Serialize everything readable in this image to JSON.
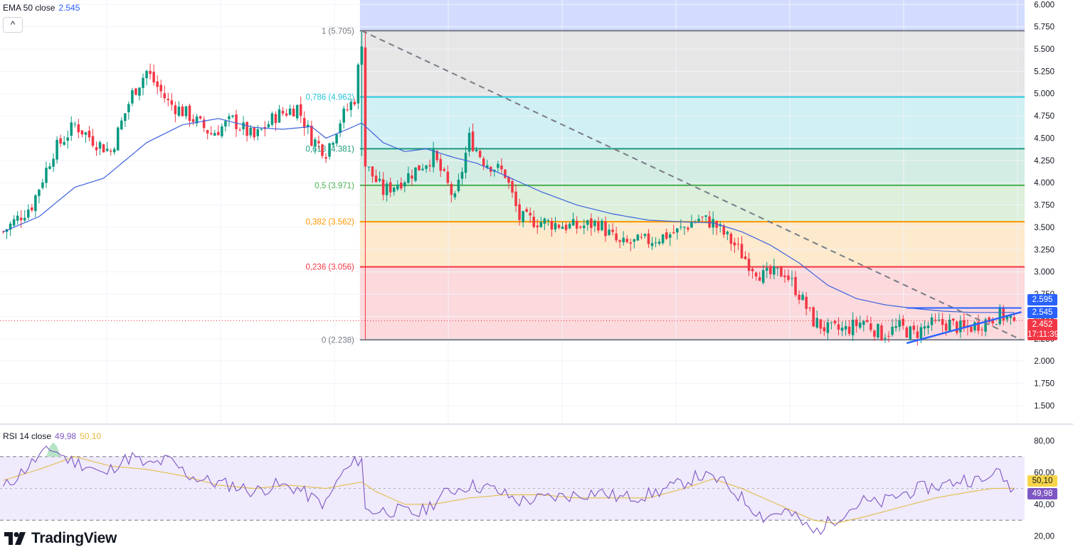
{
  "legend_main": {
    "label": "EMA 50 close",
    "value": "2.545",
    "value_color": "#2962ff"
  },
  "legend_rsi": {
    "label": "RSI 14 close",
    "rsi_value": "49,98",
    "rsi_color": "#7e57c2",
    "ma_value": "50,10",
    "ma_color": "#e2b93b"
  },
  "collapse_icon": "chevron-up-icon",
  "collapse_glyph": "^",
  "logo": {
    "icon": "tradingview-logo-icon",
    "text": "TradingView"
  },
  "price_tags": {
    "resistance": {
      "text": "2.595",
      "color": "#2962ff"
    },
    "ema": {
      "text": "2.545",
      "color": "#2962ff"
    },
    "last": {
      "text": "2.452",
      "countdown": "17:11:39",
      "color": "#f23645"
    },
    "rsi_ma": {
      "text": "50,10",
      "color": "#f7d54a"
    },
    "rsi": {
      "text": "49,98",
      "color": "#7e57c2"
    }
  },
  "chart_data": [
    {
      "type": "candlestick",
      "price_axis": {
        "min": 1.3,
        "max": 6.05,
        "ticks": [
          6.0,
          5.75,
          5.5,
          5.25,
          5.0,
          4.75,
          4.5,
          4.25,
          4.0,
          3.75,
          3.5,
          3.25,
          3.0,
          2.75,
          2.5,
          2.25,
          2.0,
          1.75,
          1.5
        ]
      },
      "tick_labels": [
        "6.000",
        "5.750",
        "5.500",
        "5.250",
        "5.000",
        "4.750",
        "4.500",
        "4.250",
        "4.000",
        "3.750",
        "3.500",
        "3.250",
        "3.000",
        "2.750",
        "2.500",
        "2.250",
        "2.000",
        "1.750",
        "1.500"
      ],
      "candle_count": 285,
      "fib_start_index": 100,
      "fibonacci": [
        {
          "label": "1 (5.705)",
          "price": 5.705,
          "color": "#787b86"
        },
        {
          "label": "0,786 (4.962)",
          "price": 4.962,
          "color": "#26c6da"
        },
        {
          "label": "0,618 (4.381)",
          "price": 4.381,
          "color": "#1b9a7c"
        },
        {
          "label": "0,5 (3.971)",
          "price": 3.971,
          "color": "#4caf50"
        },
        {
          "label": "0,382 (3.562)",
          "price": 3.562,
          "color": "#ff9800"
        },
        {
          "label": "0,236 (3.056)",
          "price": 3.056,
          "color": "#f23645"
        },
        {
          "label": "0 (2.238)",
          "price": 2.238,
          "color": "#787b86"
        }
      ],
      "fib_top_zone_price": 6.05,
      "fib_zone_colors": [
        "#d2dcff",
        "#e6e6e6",
        "#d1f0f4",
        "#d4ede4",
        "#dcf0dc",
        "#fde9cc",
        "#fbd9dc"
      ],
      "anchors": [
        [
          0,
          3.45
        ],
        [
          8,
          3.75
        ],
        [
          14,
          4.35
        ],
        [
          20,
          4.65
        ],
        [
          26,
          4.45
        ],
        [
          30,
          4.35
        ],
        [
          36,
          5.0
        ],
        [
          40,
          5.25
        ],
        [
          46,
          4.9
        ],
        [
          52,
          4.75
        ],
        [
          58,
          4.55
        ],
        [
          64,
          4.7
        ],
        [
          70,
          4.5
        ],
        [
          76,
          4.75
        ],
        [
          82,
          4.85
        ],
        [
          86,
          4.5
        ],
        [
          90,
          4.35
        ],
        [
          94,
          4.7
        ],
        [
          98,
          4.95
        ],
        [
          100,
          5.6
        ],
        [
          101,
          4.2
        ],
        [
          106,
          3.9
        ],
        [
          112,
          4.05
        ],
        [
          120,
          4.3
        ],
        [
          126,
          3.8
        ],
        [
          130,
          4.5
        ],
        [
          134,
          4.25
        ],
        [
          140,
          4.1
        ],
        [
          144,
          3.6
        ],
        [
          152,
          3.55
        ],
        [
          160,
          3.5
        ],
        [
          166,
          3.55
        ],
        [
          172,
          3.3
        ],
        [
          180,
          3.35
        ],
        [
          188,
          3.45
        ],
        [
          194,
          3.6
        ],
        [
          198,
          3.55
        ],
        [
          204,
          3.3
        ],
        [
          208,
          3.1
        ],
        [
          212,
          2.95
        ],
        [
          218,
          3.0
        ],
        [
          222,
          2.75
        ],
        [
          226,
          2.45
        ],
        [
          230,
          2.35
        ],
        [
          235,
          2.35
        ],
        [
          240,
          2.45
        ],
        [
          245,
          2.3
        ],
        [
          250,
          2.38
        ],
        [
          254,
          2.3
        ],
        [
          258,
          2.4
        ],
        [
          264,
          2.42
        ],
        [
          268,
          2.35
        ],
        [
          274,
          2.45
        ],
        [
          278,
          2.52
        ],
        [
          282,
          2.452
        ]
      ],
      "ema": {
        "name": "EMA 50",
        "color": "#3d63dd",
        "points": [
          [
            0,
            3.45
          ],
          [
            10,
            3.62
          ],
          [
            20,
            3.95
          ],
          [
            28,
            4.05
          ],
          [
            40,
            4.45
          ],
          [
            50,
            4.65
          ],
          [
            60,
            4.72
          ],
          [
            70,
            4.62
          ],
          [
            78,
            4.6
          ],
          [
            86,
            4.63
          ],
          [
            90,
            4.5
          ],
          [
            96,
            4.6
          ],
          [
            100,
            4.67
          ],
          [
            106,
            4.45
          ],
          [
            112,
            4.35
          ],
          [
            118,
            4.38
          ],
          [
            126,
            4.28
          ],
          [
            132,
            4.22
          ],
          [
            140,
            4.08
          ],
          [
            150,
            3.9
          ],
          [
            160,
            3.75
          ],
          [
            170,
            3.65
          ],
          [
            180,
            3.58
          ],
          [
            190,
            3.56
          ],
          [
            198,
            3.55
          ],
          [
            206,
            3.45
          ],
          [
            214,
            3.3
          ],
          [
            222,
            3.1
          ],
          [
            230,
            2.85
          ],
          [
            238,
            2.7
          ],
          [
            246,
            2.63
          ],
          [
            254,
            2.59
          ],
          [
            262,
            2.56
          ],
          [
            270,
            2.545
          ],
          [
            282,
            2.545
          ]
        ]
      },
      "trendline": {
        "from": [
          100,
          5.705
        ],
        "to": [
          284,
          2.238
        ],
        "color": "#787b86",
        "style": "dashed"
      },
      "resistance": {
        "from": [
          252,
          2.595
        ],
        "to": [
          284,
          2.595
        ],
        "color": "#2962ff"
      },
      "support": {
        "from": [
          252,
          2.2
        ],
        "to": [
          284,
          2.55
        ],
        "color": "#2962ff"
      },
      "last_price": {
        "value": 2.452,
        "color": "#f23645"
      }
    },
    {
      "type": "line",
      "name": "RSI 14",
      "axis": {
        "min": 10,
        "max": 90,
        "ticks": [
          80,
          60,
          40,
          20
        ]
      },
      "tick_labels": [
        "80,00",
        "60,00",
        "40,00",
        "20,00"
      ],
      "band": {
        "upper": 70,
        "lower": 30,
        "fill": "#efeafc"
      },
      "rsi_color": "#7e57c2",
      "ma_color": "#e2b93b",
      "rsi_anchors": [
        [
          0,
          50
        ],
        [
          6,
          62
        ],
        [
          10,
          70
        ],
        [
          14,
          75
        ],
        [
          18,
          68
        ],
        [
          24,
          64
        ],
        [
          28,
          58
        ],
        [
          32,
          66
        ],
        [
          36,
          70
        ],
        [
          40,
          64
        ],
        [
          46,
          68
        ],
        [
          52,
          58
        ],
        [
          58,
          54
        ],
        [
          64,
          52
        ],
        [
          70,
          48
        ],
        [
          76,
          52
        ],
        [
          82,
          50
        ],
        [
          86,
          44
        ],
        [
          90,
          40
        ],
        [
          94,
          58
        ],
        [
          98,
          66
        ],
        [
          100,
          70
        ],
        [
          101,
          36
        ],
        [
          110,
          36
        ],
        [
          116,
          34
        ],
        [
          124,
          48
        ],
        [
          130,
          52
        ],
        [
          136,
          50
        ],
        [
          144,
          42
        ],
        [
          152,
          44
        ],
        [
          160,
          46
        ],
        [
          166,
          48
        ],
        [
          172,
          44
        ],
        [
          180,
          46
        ],
        [
          188,
          52
        ],
        [
          194,
          58
        ],
        [
          200,
          55
        ],
        [
          206,
          44
        ],
        [
          212,
          32
        ],
        [
          218,
          36
        ],
        [
          222,
          30
        ],
        [
          226,
          22
        ],
        [
          230,
          28
        ],
        [
          234,
          34
        ],
        [
          240,
          42
        ],
        [
          244,
          40
        ],
        [
          250,
          46
        ],
        [
          256,
          50
        ],
        [
          262,
          52
        ],
        [
          268,
          56
        ],
        [
          274,
          54
        ],
        [
          276,
          62
        ],
        [
          280,
          54
        ],
        [
          282,
          50
        ]
      ],
      "ma_anchors": [
        [
          0,
          55
        ],
        [
          10,
          62
        ],
        [
          20,
          70
        ],
        [
          30,
          64
        ],
        [
          40,
          62
        ],
        [
          50,
          58
        ],
        [
          60,
          52
        ],
        [
          70,
          50
        ],
        [
          80,
          52
        ],
        [
          90,
          50
        ],
        [
          100,
          54
        ],
        [
          104,
          48
        ],
        [
          112,
          40
        ],
        [
          120,
          40
        ],
        [
          130,
          44
        ],
        [
          140,
          46
        ],
        [
          150,
          46
        ],
        [
          160,
          44
        ],
        [
          170,
          44
        ],
        [
          180,
          44
        ],
        [
          190,
          50
        ],
        [
          198,
          56
        ],
        [
          206,
          50
        ],
        [
          214,
          42
        ],
        [
          220,
          36
        ],
        [
          226,
          30
        ],
        [
          232,
          28
        ],
        [
          240,
          32
        ],
        [
          250,
          38
        ],
        [
          260,
          44
        ],
        [
          270,
          48
        ],
        [
          276,
          50
        ],
        [
          282,
          50.1
        ]
      ],
      "overbought_cross": {
        "from": 12,
        "to": 16
      }
    }
  ]
}
